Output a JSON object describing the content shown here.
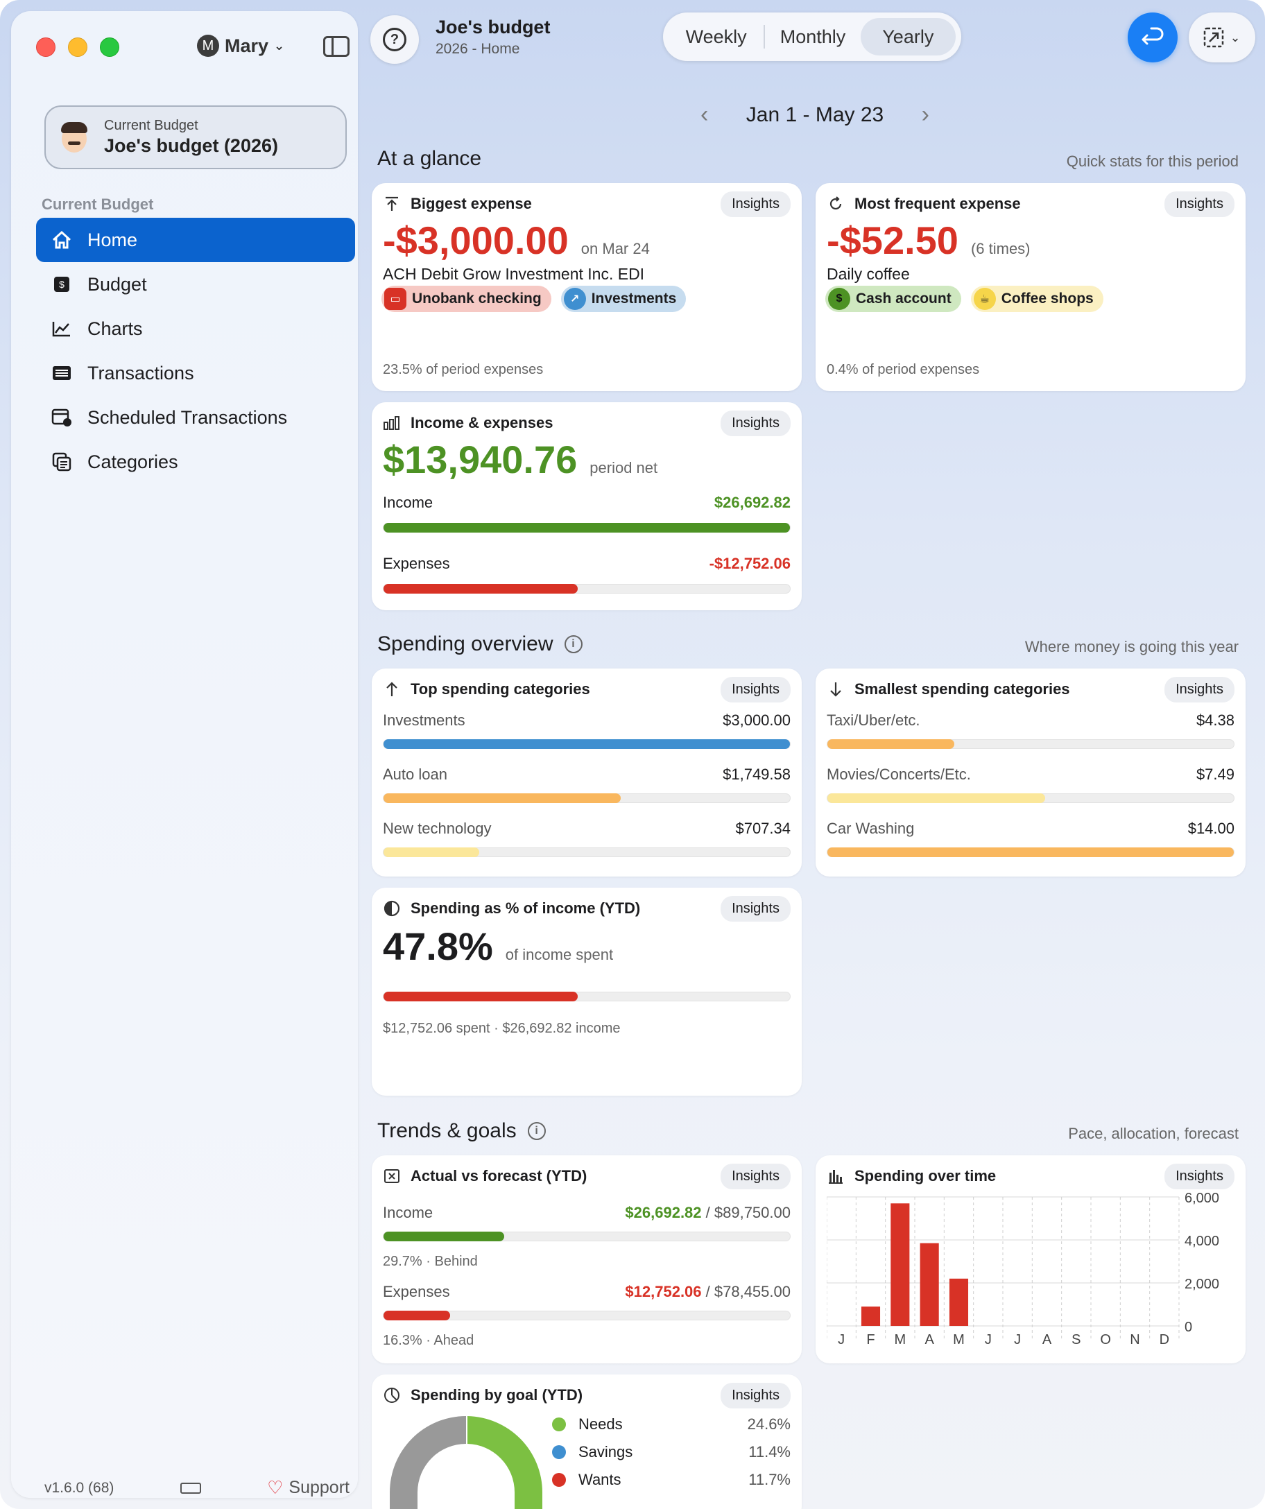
{
  "sidebar": {
    "user": {
      "initial": "M",
      "name": "Mary"
    },
    "current_budget": {
      "label": "Current Budget",
      "name": "Joe's budget (2026)"
    },
    "section_label": "Current Budget",
    "items": [
      {
        "label": "Home",
        "icon": "house-icon",
        "active": true
      },
      {
        "label": "Budget",
        "icon": "dollar-square-icon"
      },
      {
        "label": "Charts",
        "icon": "line-chart-icon"
      },
      {
        "label": "Transactions",
        "icon": "list-icon"
      },
      {
        "label": "Scheduled Transactions",
        "icon": "calendar-clock-icon"
      },
      {
        "label": "Categories",
        "icon": "categories-icon"
      }
    ],
    "version": "v1.6.0 (68)",
    "support_label": "Support"
  },
  "header": {
    "title": "Joe's budget",
    "subtitle": "2026 - Home",
    "period_tabs": [
      "Weekly",
      "Monthly",
      "Yearly"
    ],
    "active_tab": "Yearly",
    "date_range": "Jan 1 - May 23"
  },
  "glance": {
    "title": "At a glance",
    "hint": "Quick stats for this period",
    "biggest_expense": {
      "title": "Biggest expense",
      "insights": "Insights",
      "amount": "-$3,000.00",
      "date": "on Mar 24",
      "description": "ACH Debit Grow Investment Inc. EDI",
      "account_chip": "Unobank checking",
      "category_chip": "Investments",
      "footnote": "23.5% of period expenses"
    },
    "frequent_expense": {
      "title": "Most frequent expense",
      "insights": "Insights",
      "amount": "-$52.50",
      "times": "(6 times)",
      "description": "Daily coffee",
      "account_chip": "Cash account",
      "category_chip": "Coffee shops",
      "footnote": "0.4% of period expenses"
    },
    "income_expenses": {
      "title": "Income & expenses",
      "insights": "Insights",
      "net": "$13,940.76",
      "net_label": "period net",
      "income_label": "Income",
      "income_value": "$26,692.82",
      "income_fill": 1.0,
      "expenses_label": "Expenses",
      "expenses_value": "-$12,752.06",
      "expenses_fill": 0.478
    }
  },
  "spending": {
    "title": "Spending overview",
    "hint": "Where money is going this year",
    "top": {
      "title": "Top spending categories",
      "insights": "Insights",
      "rows": [
        {
          "label": "Investments",
          "value": "$3,000.00",
          "fill": 1.0,
          "color": "#3f8fd0"
        },
        {
          "label": "Auto loan",
          "value": "$1,749.58",
          "fill": 0.583,
          "color": "#f9b75e"
        },
        {
          "label": "New technology",
          "value": "$707.34",
          "fill": 0.236,
          "color": "#fbe79a"
        }
      ]
    },
    "smallest": {
      "title": "Smallest spending categories",
      "insights": "Insights",
      "rows": [
        {
          "label": "Taxi/Uber/etc.",
          "value": "$4.38",
          "fill": 0.313,
          "color": "#f9b75e"
        },
        {
          "label": "Movies/Concerts/Etc.",
          "value": "$7.49",
          "fill": 0.535,
          "color": "#fbe79a"
        },
        {
          "label": "Car Washing",
          "value": "$14.00",
          "fill": 1.0,
          "color": "#f9b75e"
        }
      ]
    },
    "percent_income": {
      "title": "Spending as % of income (YTD)",
      "insights": "Insights",
      "value": "47.8%",
      "label": "of income spent",
      "fill": 0.478,
      "footnote": "$12,752.06 spent · $26,692.82 income"
    }
  },
  "trends": {
    "title": "Trends & goals",
    "hint": "Pace, allocation, forecast",
    "forecast": {
      "title": "Actual vs forecast (YTD)",
      "insights": "Insights",
      "income_label": "Income",
      "income_actual": "$26,692.82",
      "income_forecast": "/ $89,750.00",
      "income_fill": 0.297,
      "income_status": "29.7% · Behind",
      "expenses_label": "Expenses",
      "expenses_actual": "$12,752.06",
      "expenses_forecast": "/ $78,455.00",
      "expenses_fill": 0.163,
      "expenses_status": "16.3% · Ahead"
    },
    "spending_time": {
      "title": "Spending over time",
      "insights": "Insights"
    },
    "goal": {
      "title": "Spending by goal (YTD)",
      "insights": "Insights",
      "items": [
        {
          "label": "Needs",
          "value": "24.6%",
          "color": "#7cc042"
        },
        {
          "label": "Savings",
          "value": "11.4%",
          "color": "#3f8fd0"
        },
        {
          "label": "Wants",
          "value": "11.7%",
          "color": "#d83226"
        }
      ]
    }
  },
  "chart_data": {
    "type": "bar",
    "categories": [
      "J",
      "F",
      "M",
      "A",
      "M",
      "J",
      "J",
      "A",
      "S",
      "O",
      "N",
      "D"
    ],
    "values": [
      0,
      900,
      5700,
      3850,
      2200,
      0,
      0,
      0,
      0,
      0,
      0,
      0
    ],
    "ylim": [
      0,
      6000
    ],
    "yticks": [
      "6,000",
      "4,000",
      "2,000",
      "0"
    ],
    "bar_color": "#d83226",
    "grid": true
  }
}
